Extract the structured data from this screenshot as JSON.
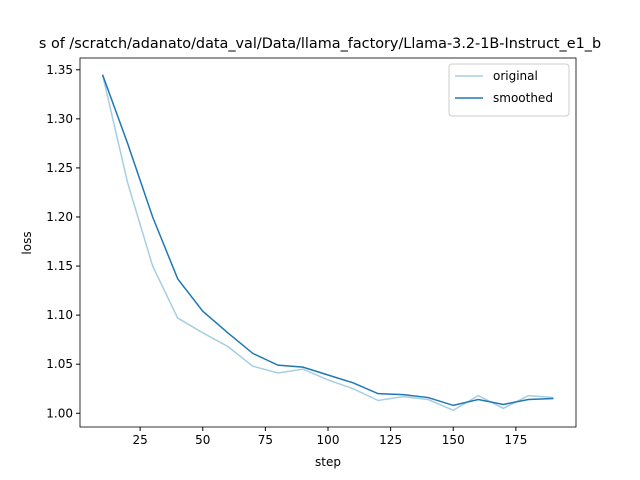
{
  "chart_data": {
    "type": "line",
    "title": "s of /scratch/adanato/data_val/Data/llama_factory/Llama-3.2-1B-Instruct_e1_b",
    "x_label": "step",
    "y_label": "loss",
    "x": [
      10,
      20,
      30,
      40,
      50,
      60,
      70,
      80,
      90,
      100,
      110,
      120,
      130,
      140,
      150,
      160,
      170,
      180,
      190
    ],
    "series": [
      {
        "name": "original",
        "color": "#a6cee3",
        "values": [
          1.345,
          1.235,
          1.15,
          1.097,
          1.082,
          1.068,
          1.048,
          1.041,
          1.045,
          1.034,
          1.025,
          1.013,
          1.017,
          1.014,
          1.003,
          1.018,
          1.005,
          1.018,
          1.016
        ]
      },
      {
        "name": "smoothed",
        "color": "#1f78b4",
        "values": [
          1.345,
          1.275,
          1.2,
          1.137,
          1.104,
          1.082,
          1.061,
          1.049,
          1.047,
          1.039,
          1.031,
          1.02,
          1.019,
          1.016,
          1.008,
          1.014,
          1.009,
          1.014,
          1.015
        ]
      }
    ],
    "xlim": [
      1,
      199
    ],
    "xticks": [
      25,
      50,
      75,
      100,
      125,
      150,
      175
    ],
    "ylim": [
      0.986,
      1.362
    ],
    "yticks": [
      {
        "value": 1.0,
        "label": "1.00"
      },
      {
        "value": 1.05,
        "label": "1.05"
      },
      {
        "value": 1.1,
        "label": "1.10"
      },
      {
        "value": 1.15,
        "label": "1.15"
      },
      {
        "value": 1.2,
        "label": "1.20"
      },
      {
        "value": 1.25,
        "label": "1.25"
      },
      {
        "value": 1.3,
        "label": "1.30"
      },
      {
        "value": 1.35,
        "label": "1.35"
      }
    ],
    "legend": "upper right"
  }
}
